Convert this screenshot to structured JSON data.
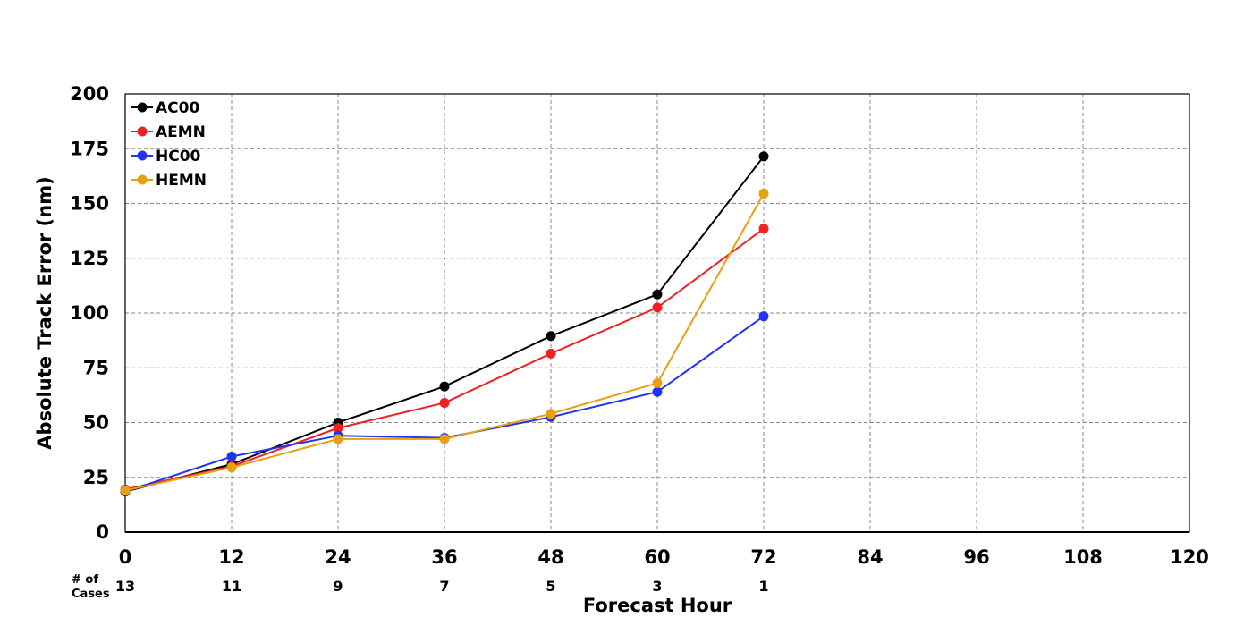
{
  "chart_data": {
    "type": "line",
    "xlabel": "Forecast Hour",
    "ylabel": "Absolute Track Error (nm)",
    "xlim": [
      0,
      120
    ],
    "ylim": [
      0,
      200
    ],
    "x_ticks": [
      0,
      12,
      24,
      36,
      48,
      60,
      72,
      84,
      96,
      108,
      120
    ],
    "y_ticks": [
      0,
      25,
      50,
      75,
      100,
      125,
      150,
      175,
      200
    ],
    "grid": true,
    "legend_position": "top-left",
    "x": [
      0,
      12,
      24,
      36,
      48,
      60,
      72
    ],
    "series": [
      {
        "name": "AC00",
        "color": "#000000",
        "values": [
          18.5,
          31,
          50,
          66.5,
          89.5,
          108.5,
          171.5
        ]
      },
      {
        "name": "AEMN",
        "color": "#ee2222",
        "values": [
          19.5,
          30,
          47.5,
          59,
          81.5,
          102.5,
          138.5
        ]
      },
      {
        "name": "HC00",
        "color": "#2233ee",
        "values": [
          18.5,
          34.5,
          44,
          43,
          52.5,
          64,
          98.5
        ]
      },
      {
        "name": "HEMN",
        "color": "#e8a010",
        "values": [
          19,
          29.5,
          42.5,
          42.5,
          54,
          68,
          154.5
        ]
      }
    ],
    "cases_label_line1": "# of",
    "cases_label_line2": "Cases",
    "cases_x": [
      0,
      12,
      24,
      36,
      48,
      60,
      72
    ],
    "cases_values": [
      "13",
      "11",
      "9",
      "7",
      "5",
      "3",
      "1"
    ]
  }
}
